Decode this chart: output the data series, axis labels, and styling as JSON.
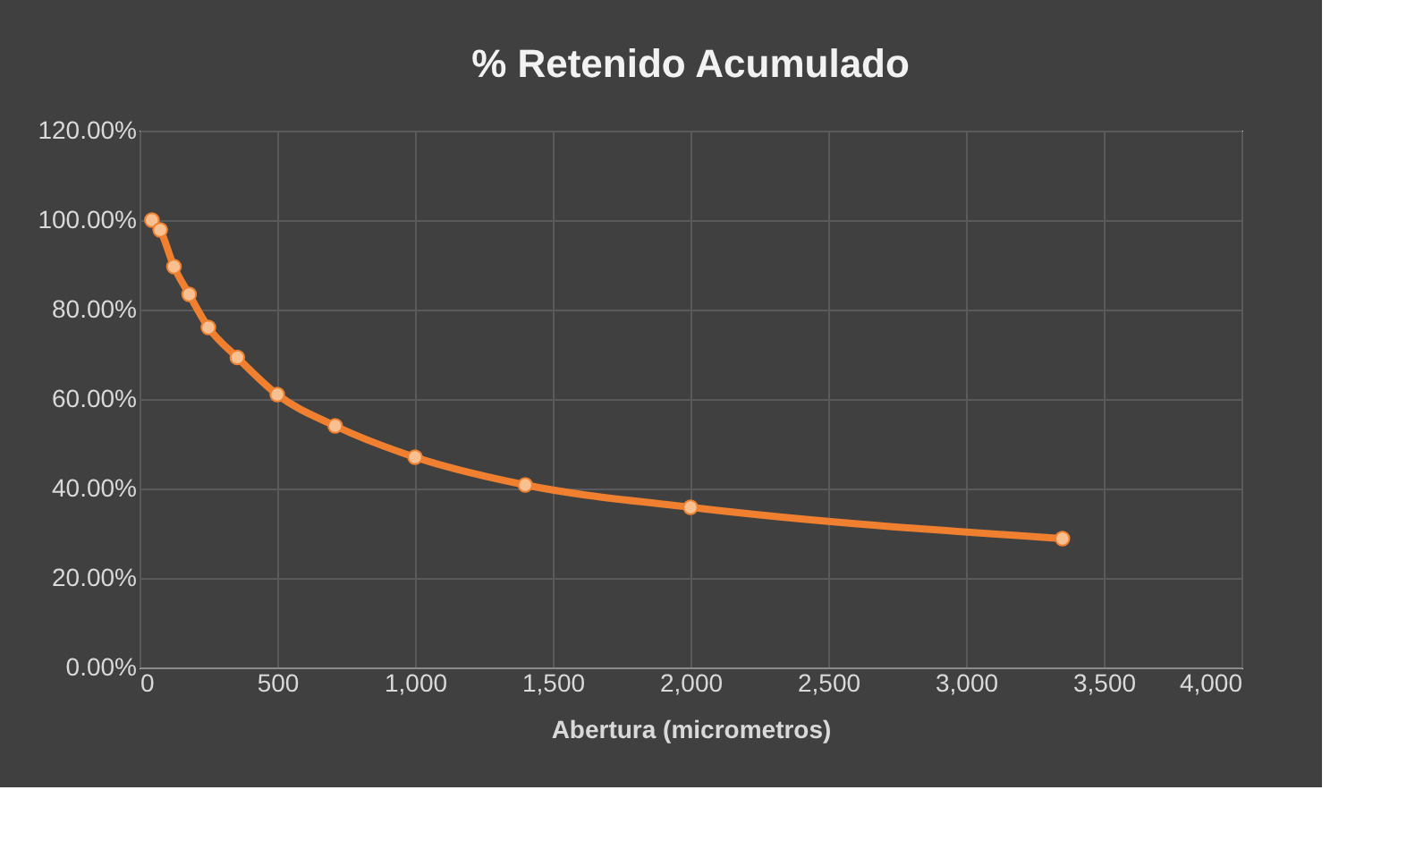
{
  "chart_data": {
    "type": "line",
    "title": "% Retenido Acumulado",
    "xlabel": "Abertura (micrometros)",
    "x": [
      45,
      75,
      125,
      180,
      250,
      355,
      500,
      710,
      1000,
      1400,
      2000,
      3350
    ],
    "series": [
      {
        "color": "#f08030",
        "values": [
          100,
          97.8,
          89.6,
          83.4,
          76,
          69.3,
          61,
          54,
          47,
          40.8,
          35.8,
          28.8
        ]
      }
    ],
    "xlim": [
      0,
      4000
    ],
    "xticks": [
      {
        "value": 0,
        "label": "0"
      },
      {
        "value": 500,
        "label": "500"
      },
      {
        "value": 1000,
        "label": "1,000"
      },
      {
        "value": 1500,
        "label": "1,500"
      },
      {
        "value": 2000,
        "label": "2,000"
      },
      {
        "value": 2500,
        "label": "2,500"
      },
      {
        "value": 3000,
        "label": "3,000"
      },
      {
        "value": 3500,
        "label": "3,500"
      },
      {
        "value": 4000,
        "label": "4,000"
      }
    ],
    "ylim": [
      0,
      120
    ],
    "yticks": [
      {
        "value": 0,
        "label": "0.00%"
      },
      {
        "value": 20,
        "label": "20.00%"
      },
      {
        "value": 40,
        "label": "40.00%"
      },
      {
        "value": 60,
        "label": "60.00%"
      },
      {
        "value": 80,
        "label": "80.00%"
      },
      {
        "value": 100,
        "label": "100.00%"
      },
      {
        "value": 120,
        "label": "120.00%"
      }
    ],
    "grid": true,
    "marker": "circle",
    "line_style": "solid"
  }
}
